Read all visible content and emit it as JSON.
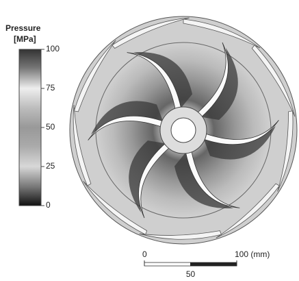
{
  "colorbar": {
    "title": "Pressure",
    "unit": "[MPa]",
    "range": [
      0,
      100
    ],
    "ticks": [
      0,
      25,
      50,
      75,
      100
    ]
  },
  "scale_bar": {
    "range": [
      0,
      100
    ],
    "ticks": [
      0,
      {
        "value": 100,
        "label": "100 (mm)"
      }
    ],
    "middle": 50
  }
}
